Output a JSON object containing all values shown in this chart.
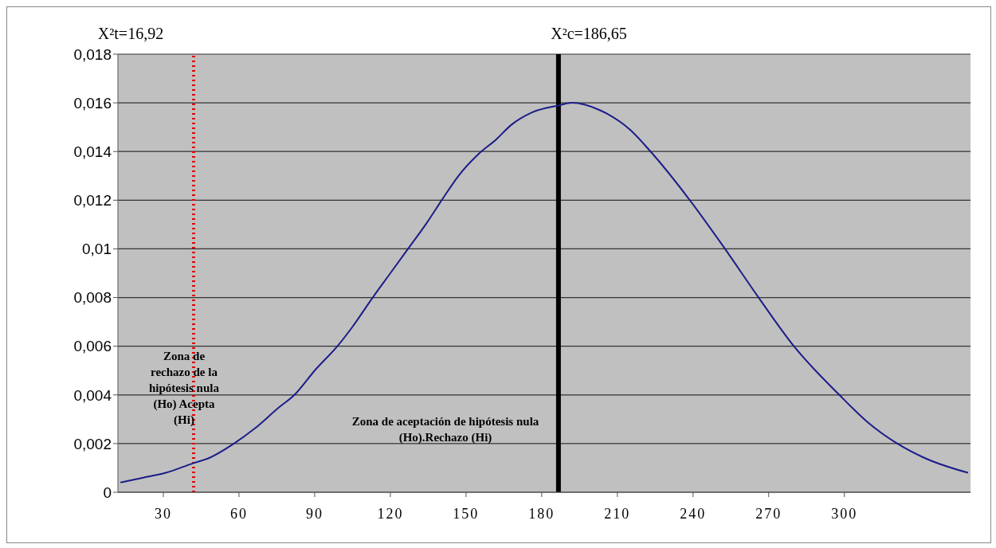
{
  "chart_data": {
    "type": "line",
    "annotations": [
      "X²t=16,92",
      "X²c=186,65",
      "Zona de rechazo de la hipótesis nula (Ho) Acepta (Hi)",
      "Zona de aceptación de hipótesis nula (Ho).Rechazo (Hi)"
    ],
    "x": [
      13,
      22,
      31,
      42,
      48,
      58,
      66,
      76,
      82,
      90,
      99,
      105,
      113,
      120,
      127,
      134,
      141,
      147,
      155,
      162,
      168,
      176,
      187,
      192,
      203,
      215,
      224,
      238,
      252,
      266,
      280,
      298,
      309,
      321,
      332,
      349
    ],
    "series": [
      {
        "color": "#1c1c8a",
        "values": [
          0.0004,
          0.0006,
          0.0008,
          0.0012,
          0.0014,
          0.002,
          0.0026,
          0.0035,
          0.004,
          0.005,
          0.006,
          0.0068,
          0.008,
          0.009,
          0.01,
          0.011,
          0.0121,
          0.013,
          0.0139,
          0.0145,
          0.0151,
          0.0156,
          0.0159,
          0.016,
          0.0157,
          0.0149,
          0.0139,
          0.0121,
          0.0101,
          0.008,
          0.006,
          0.004,
          0.0029,
          0.002,
          0.0014,
          0.0008
        ]
      }
    ],
    "xlim": [
      12,
      350
    ],
    "xticks": [
      30,
      60,
      90,
      120,
      150,
      180,
      210,
      240,
      270,
      300
    ],
    "ylim": [
      0,
      0.018
    ],
    "yticks": [
      0,
      {
        "value": 0.002,
        "label": "0,002"
      },
      {
        "value": 0.004,
        "label": "0,004"
      },
      {
        "value": 0.006,
        "label": "0,006"
      },
      {
        "value": 0.008,
        "label": "0,008"
      },
      {
        "value": 0.01,
        "label": "0,01"
      },
      {
        "value": 0.012,
        "label": "0,012"
      },
      {
        "value": 0.014,
        "label": "0,014"
      },
      {
        "value": 0.016,
        "label": "0,016"
      },
      {
        "value": 0.018,
        "label": "0,018"
      }
    ],
    "ref_lines": [
      {
        "axis": "x",
        "value": 42,
        "color": "#e00000",
        "line_style": "dotted"
      },
      {
        "axis": "x",
        "value": 186.65,
        "color": "#000000",
        "line_style": "solid"
      }
    ],
    "grid": "y",
    "marker": "none",
    "line_style": "solid"
  }
}
